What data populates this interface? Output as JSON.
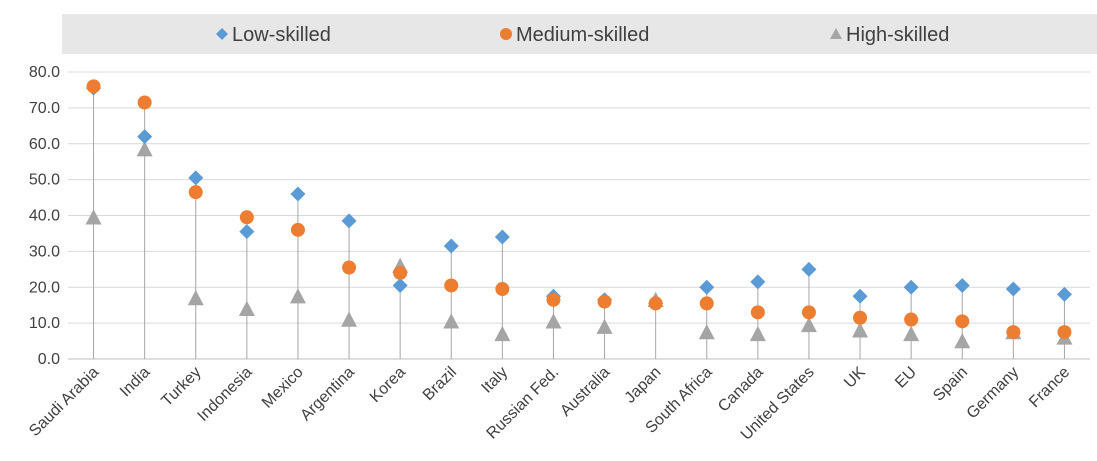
{
  "chart_data": {
    "type": "scatter",
    "categories": [
      "Saudi Arabia",
      "India",
      "Turkey",
      "Indonesia",
      "Mexico",
      "Argentina",
      "Korea",
      "Brazil",
      "Italy",
      "Russian Fed.",
      "Australia",
      "Japan",
      "South Africa",
      "Canada",
      "United States",
      "UK",
      "EU",
      "Spain",
      "Germany",
      "France"
    ],
    "series": [
      {
        "name": "Low-skilled",
        "marker": "diamond",
        "color": "#5B9BD5",
        "values": [
          75.5,
          62.0,
          50.5,
          35.5,
          46.0,
          38.5,
          20.5,
          31.5,
          34.0,
          17.5,
          16.5,
          15.5,
          20.0,
          21.5,
          25.0,
          17.5,
          20.0,
          20.5,
          19.5,
          18.0
        ]
      },
      {
        "name": "Medium-skilled",
        "marker": "circle",
        "color": "#ED7D31",
        "values": [
          76.0,
          71.5,
          46.5,
          39.5,
          36.0,
          25.5,
          24.0,
          20.5,
          19.5,
          16.5,
          16.0,
          15.5,
          15.5,
          13.0,
          13.0,
          11.5,
          11.0,
          10.5,
          7.5,
          7.5
        ]
      },
      {
        "name": "High-skilled",
        "marker": "triangle",
        "color": "#A5A5A5",
        "values": [
          39.5,
          58.5,
          17.0,
          14.0,
          17.5,
          11.0,
          26.0,
          10.5,
          7.0,
          10.5,
          9.0,
          16.5,
          7.5,
          7.0,
          9.5,
          8.0,
          7.0,
          5.0,
          7.5,
          6.0
        ]
      }
    ],
    "yticks": [
      "0.0",
      "10.0",
      "20.0",
      "30.0",
      "40.0",
      "50.0",
      "60.0",
      "70.0",
      "80.0"
    ],
    "ylim": [
      0,
      80
    ],
    "grid": true,
    "legend": "top",
    "drop_lines": true,
    "title": "",
    "xlabel": "",
    "ylabel": ""
  }
}
